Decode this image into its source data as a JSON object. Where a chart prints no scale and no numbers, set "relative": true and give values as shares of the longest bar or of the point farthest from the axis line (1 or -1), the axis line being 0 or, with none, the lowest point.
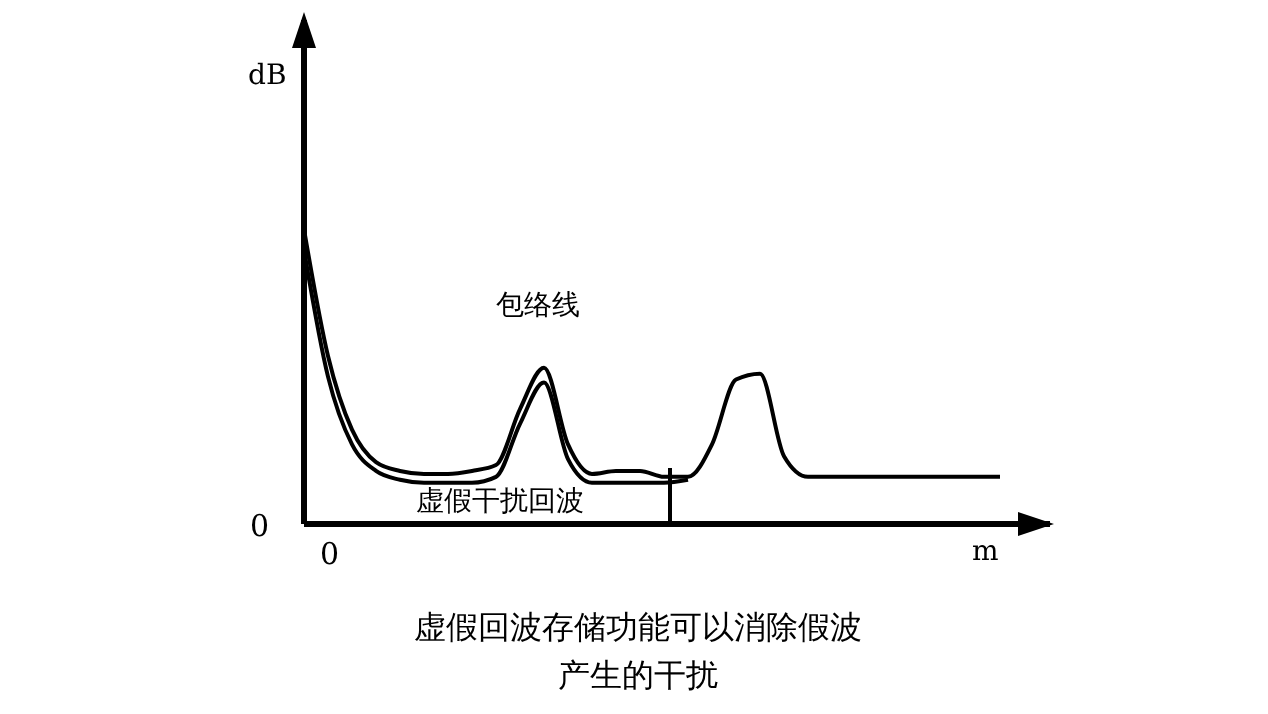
{
  "chart_data": {
    "type": "line",
    "relative": true,
    "title": "虚假回波存储功能可以消除假波产生的干扰",
    "xlabel": "m",
    "ylabel": "dB",
    "annotations": [
      "包络线",
      "虚假干扰回波",
      "0",
      "0"
    ],
    "categories": [
      null,
      null,
      null,
      null,
      null,
      null,
      null,
      null,
      null,
      null,
      null,
      null,
      null,
      null,
      null,
      null,
      null,
      null,
      null,
      null,
      null,
      null,
      null,
      null,
      null,
      null,
      null,
      null,
      null,
      null
    ],
    "series": [
      {
        "color": "#000000",
        "values": [
          1,
          0.57,
          0.32,
          0.21,
          0.18,
          0.17,
          0.17,
          0.18,
          0.2,
          0.39,
          0.53,
          0.27,
          0.17,
          0.18,
          0.18,
          0.16,
          0.16,
          0.27,
          0.49,
          0.51,
          0.23,
          0.16,
          0.16,
          0.16,
          0.16,
          0.16,
          0.16,
          0.16,
          0.16,
          0.16
        ]
      },
      {
        "color": "#000000",
        "values": [
          0.93,
          0.5,
          0.27,
          0.18,
          0.15,
          0.14,
          0.14,
          0.14,
          0.16,
          0.34,
          0.48,
          0.22,
          0.14,
          0.14,
          0.14,
          0.14,
          0.15,
          null,
          null,
          null,
          null,
          null,
          null,
          null,
          null,
          null,
          null,
          null,
          null,
          null
        ]
      }
    ],
    "legend": false,
    "grid": false,
    "marker": "none",
    "line_style": "solid"
  }
}
